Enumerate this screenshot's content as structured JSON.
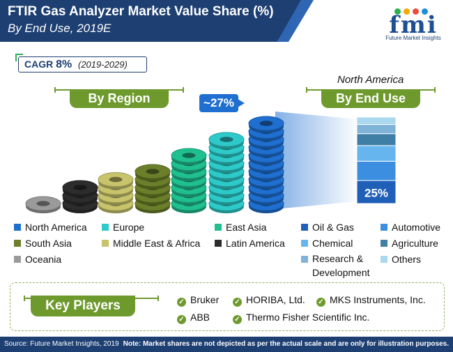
{
  "header": {
    "title": "FTIR Gas Analyzer Market Value Share (%)",
    "subtitle": "By End Use, 2019E",
    "logo_text": "fmi",
    "logo_subtext": "Future Market Insights"
  },
  "cagr": {
    "label": "CAGR",
    "value": "8%",
    "period": "(2019-2029)"
  },
  "region_heading": "By Region",
  "enduse_heading": "By End Use",
  "enduse_region": "North America",
  "callout": "~27%",
  "colors": {
    "north_america": "#1f6fd0",
    "europe": "#2ec9c9",
    "east_asia": "#1fbf8f",
    "south_asia": "#6b7f2a",
    "middle_east_africa": "#c8c46c",
    "latin_america": "#2c2c2c",
    "oceania": "#9a9a9a",
    "accent_green": "#6e9a2d",
    "navy": "#1d3f72"
  },
  "chart_data": [
    {
      "type": "bar",
      "title": "By Region",
      "categories": [
        "Oceania",
        "Latin America",
        "Middle East & Africa",
        "South Asia",
        "East Asia",
        "Europe",
        "North America"
      ],
      "values": [
        2,
        4,
        6,
        8,
        11,
        13,
        17
      ],
      "annotations": [
        {
          "category": "North America",
          "text": "~27%"
        }
      ],
      "note": "Market shares are not depicted as per the actual scale and are only for illustration purposes."
    },
    {
      "type": "bar",
      "title": "By End Use",
      "subtitle": "North America",
      "categories": [
        "Oil & Gas",
        "Automotive",
        "Chemical",
        "Agriculture",
        "Research & Development",
        "Others"
      ],
      "values": [
        25,
        21,
        17,
        13,
        10,
        8
      ],
      "data_labels": [
        "25%",
        "",
        "",
        "",
        "",
        ""
      ]
    }
  ],
  "legend_region": [
    {
      "label": "North America",
      "color": "#1f6fd0"
    },
    {
      "label": "Europe",
      "color": "#2ec9c9"
    },
    {
      "label": "East Asia",
      "color": "#1fbf8f"
    },
    {
      "label": "South Asia",
      "color": "#6b7f2a"
    },
    {
      "label": "Middle East & Africa",
      "color": "#c8c46c"
    },
    {
      "label": "Latin America",
      "color": "#2c2c2c"
    },
    {
      "label": "Oceania",
      "color": "#9a9a9a"
    }
  ],
  "legend_enduse": [
    {
      "label": "Oil & Gas",
      "color": "#1f5fb8"
    },
    {
      "label": "Automotive",
      "color": "#3c8fe0"
    },
    {
      "label": "Chemical",
      "color": "#66b5ee"
    },
    {
      "label": "Agriculture",
      "color": "#3f7fa6"
    },
    {
      "label": "Research & Development",
      "color": "#7fb4d8"
    },
    {
      "label": "Others",
      "color": "#a9d8ef"
    }
  ],
  "key_players_heading": "Key Players",
  "key_players": [
    "Bruker",
    "HORIBA, Ltd.",
    "MKS Instruments, Inc.",
    "ABB",
    "Thermo Fisher Scientific Inc."
  ],
  "footer": {
    "source": "Source: Future Market Insights, 2019",
    "note": "Note: Market shares are not depicted as per the actual scale and are only for illustration purposes."
  }
}
